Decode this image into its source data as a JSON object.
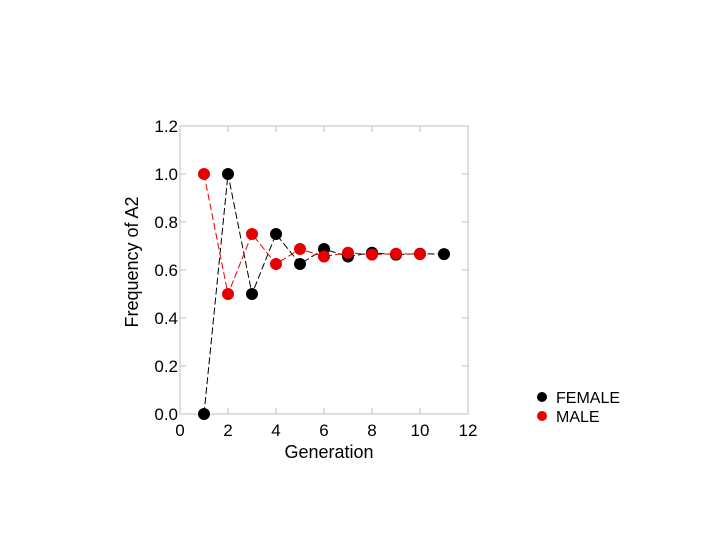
{
  "chart_data": {
    "type": "line",
    "xlabel": "Generation",
    "ylabel": "Frequency of A2",
    "xlim": [
      0,
      12
    ],
    "ylim": [
      0.0,
      1.2
    ],
    "x_ticks": [
      "0",
      "2",
      "4",
      "6",
      "8",
      "10",
      "12"
    ],
    "y_ticks": [
      "0.0",
      "0.2",
      "0.4",
      "0.6",
      "0.8",
      "1.0",
      "1.2"
    ],
    "grid": false,
    "legend": "bottom-right, outside plot",
    "series": [
      {
        "name": "FEMALE",
        "color": "#000000",
        "x": [
          1,
          2,
          3,
          4,
          5,
          6,
          7,
          8,
          9,
          10,
          11
        ],
        "values": [
          0.0,
          1.0,
          0.5,
          0.75,
          0.625,
          0.6875,
          0.65625,
          0.671875,
          0.6640625,
          0.66796875,
          0.666
        ]
      },
      {
        "name": "MALE",
        "color": "#e60000",
        "x": [
          1,
          2,
          3,
          4,
          5,
          6,
          7,
          8,
          9,
          10
        ],
        "values": [
          1.0,
          0.5,
          0.75,
          0.625,
          0.6875,
          0.65625,
          0.671875,
          0.6640625,
          0.66796875,
          0.666
        ]
      }
    ]
  }
}
